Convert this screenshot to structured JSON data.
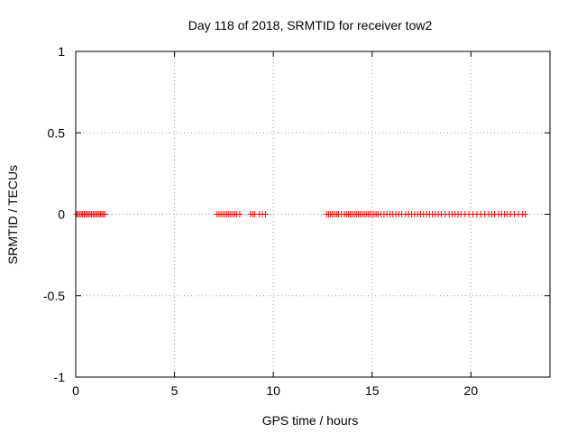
{
  "chart_data": {
    "type": "scatter",
    "title": "Day 118 of 2018, SRMTID for receiver tow2",
    "xlabel": "GPS time / hours",
    "ylabel": "SRMTID / TECUs",
    "xlim": [
      0,
      24
    ],
    "ylim": [
      -1,
      1
    ],
    "x_ticks": [
      {
        "value": 0,
        "label": "0"
      },
      {
        "value": 5,
        "label": "5"
      },
      {
        "value": 10,
        "label": "10"
      },
      {
        "value": 15,
        "label": "15"
      },
      {
        "value": 20,
        "label": "20"
      }
    ],
    "y_ticks": [
      {
        "value": 1,
        "label": "1"
      },
      {
        "value": 0.5,
        "label": "0.5"
      },
      {
        "value": 0,
        "label": "0"
      },
      {
        "value": -0.5,
        "label": "-0.5"
      },
      {
        "value": -1,
        "label": "-1"
      }
    ],
    "grid": true,
    "marker": "+",
    "marker_color": "#ff0000",
    "series": [
      {
        "name": "SRMTID",
        "x": [
          0.05,
          0.12,
          0.2,
          0.28,
          0.35,
          0.43,
          0.5,
          0.58,
          0.65,
          0.73,
          0.8,
          0.88,
          0.95,
          1.03,
          1.1,
          1.18,
          1.25,
          1.32,
          1.4,
          1.48,
          7.15,
          7.25,
          7.35,
          7.45,
          7.55,
          7.65,
          7.75,
          7.85,
          7.95,
          8.05,
          8.15,
          8.3,
          8.85,
          8.95,
          9.05,
          9.3,
          9.45,
          9.6,
          12.7,
          12.8,
          12.9,
          13.0,
          13.1,
          13.2,
          13.3,
          13.45,
          13.6,
          13.7,
          13.8,
          13.9,
          14.0,
          14.1,
          14.2,
          14.3,
          14.4,
          14.5,
          14.6,
          14.7,
          14.8,
          14.9,
          15.0,
          15.1,
          15.2,
          15.3,
          15.45,
          15.6,
          15.75,
          15.9,
          16.05,
          16.2,
          16.35,
          16.5,
          16.7,
          16.85,
          17.0,
          17.15,
          17.3,
          17.45,
          17.6,
          17.75,
          17.9,
          18.05,
          18.2,
          18.35,
          18.5,
          18.7,
          18.9,
          19.05,
          19.2,
          19.35,
          19.5,
          19.7,
          19.9,
          20.1,
          20.3,
          20.5,
          20.7,
          20.9,
          21.05,
          21.2,
          21.4,
          21.55,
          21.7,
          21.85,
          22.0,
          22.2,
          22.4,
          22.6,
          22.75
        ],
        "y": [
          0,
          0,
          0,
          0,
          0,
          0,
          0,
          0,
          0,
          0,
          0,
          0,
          0,
          0,
          0,
          0,
          0,
          0,
          0,
          0,
          0,
          0,
          0,
          0,
          0,
          0,
          0,
          0,
          0,
          0,
          0,
          0,
          0,
          0,
          0,
          0,
          0,
          0,
          0,
          0,
          0,
          0,
          0,
          0,
          0,
          0,
          0,
          0,
          0,
          0,
          0,
          0,
          0,
          0,
          0,
          0,
          0,
          0,
          0,
          0,
          0,
          0,
          0,
          0,
          0,
          0,
          0,
          0,
          0,
          0,
          0,
          0,
          0,
          0,
          0,
          0,
          0,
          0,
          0,
          0,
          0,
          0,
          0,
          0,
          0,
          0,
          0,
          0,
          0,
          0,
          0,
          0,
          0,
          0,
          0,
          0,
          0,
          0,
          0,
          0,
          0,
          0,
          0,
          0,
          0,
          0,
          0,
          0,
          0
        ]
      }
    ]
  }
}
